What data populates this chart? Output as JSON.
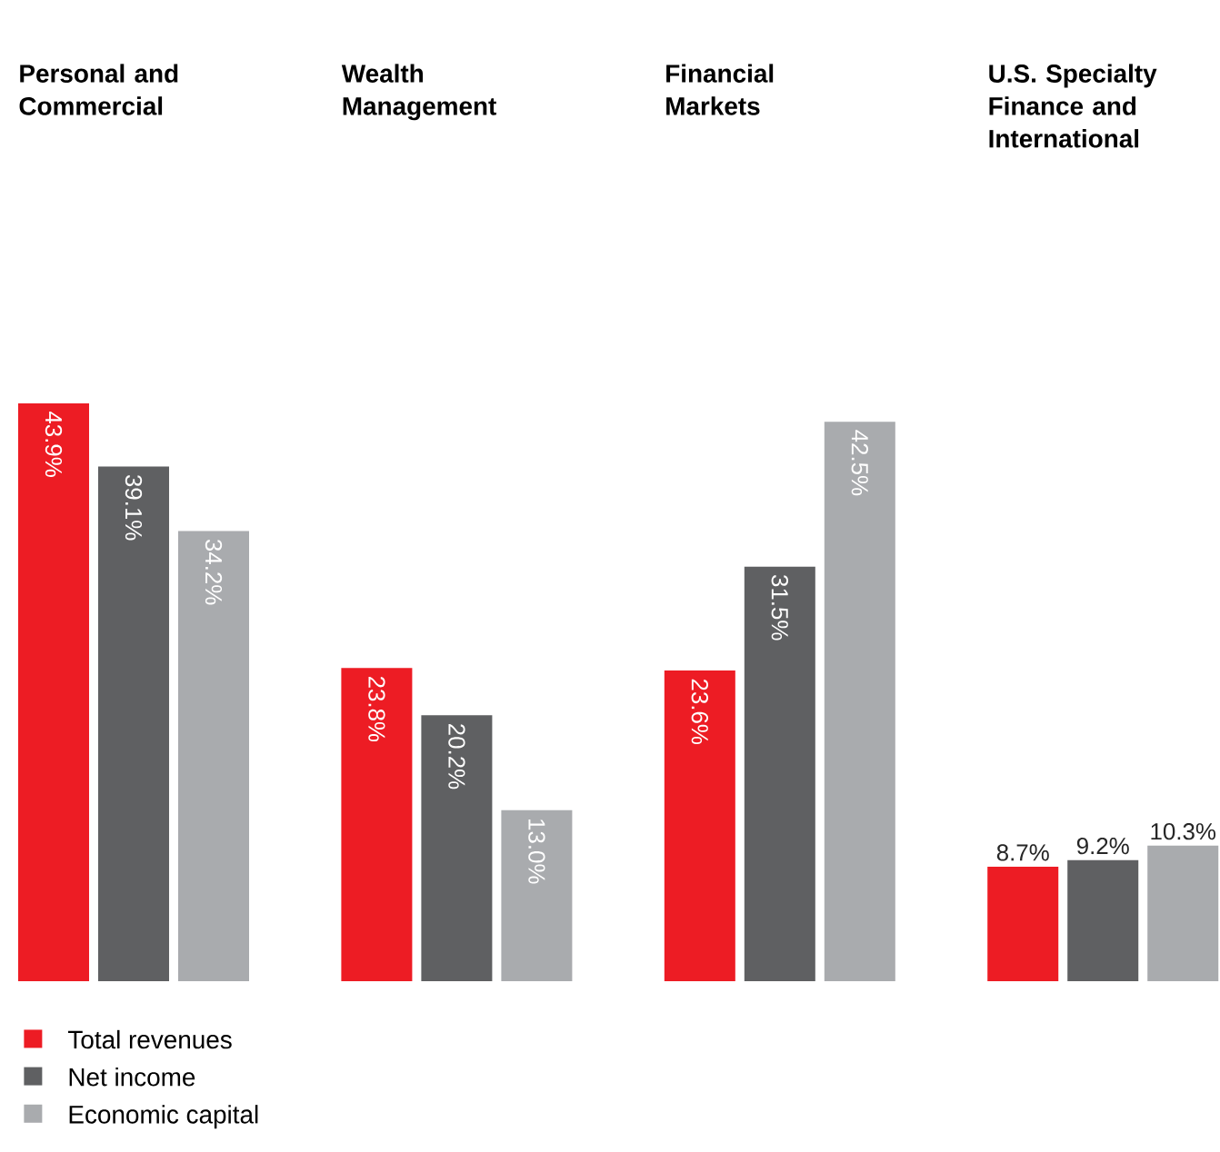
{
  "chart_data": {
    "type": "bar",
    "categories": [
      "Personal and Commercial",
      "Wealth Management",
      "Financial Markets",
      "U.S. Specialty Finance and International"
    ],
    "series": [
      {
        "name": "Total revenues",
        "color": "#ed1c24",
        "values": [
          43.9,
          23.8,
          23.6,
          8.7
        ],
        "value_labels": [
          "43.9%",
          "23.8%",
          "23.6%",
          "8.7%"
        ]
      },
      {
        "name": "Net income",
        "color": "#5f6062",
        "values": [
          39.1,
          20.2,
          31.5,
          9.2
        ],
        "value_labels": [
          "39.1%",
          "20.2%",
          "31.5%",
          "9.2%"
        ]
      },
      {
        "name": "Economic capital",
        "color": "#a9abae",
        "values": [
          34.2,
          13.0,
          42.5,
          10.3
        ],
        "value_labels": [
          "34.2%",
          "13.0%",
          "42.5%",
          "10.3%"
        ]
      }
    ],
    "legend": "bottom left"
  }
}
